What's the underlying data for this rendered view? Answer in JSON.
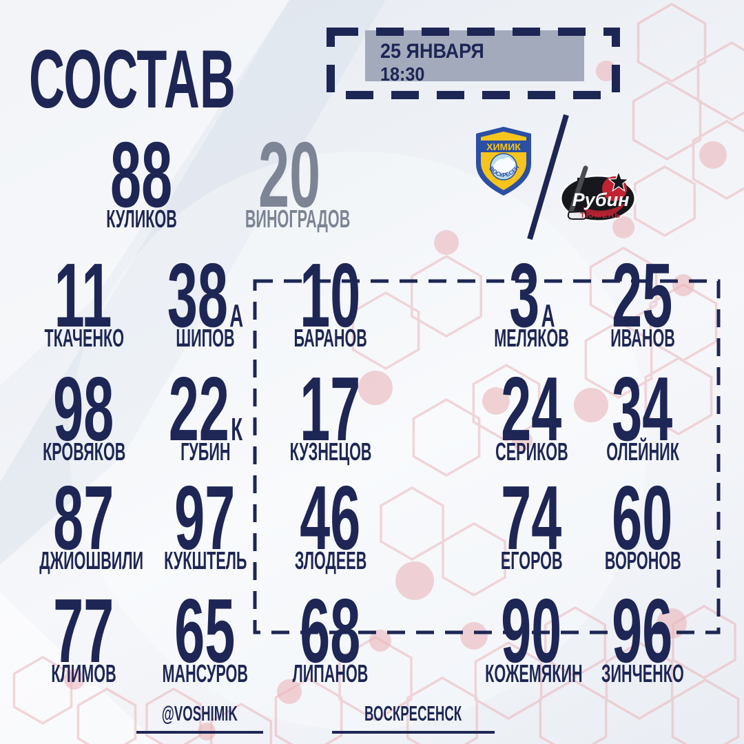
{
  "title": "СОСТАВ",
  "match": {
    "date": "25 ЯНВАРЯ",
    "time": "18:30"
  },
  "teams": {
    "home": {
      "name": "ХИМИК",
      "city": "ВОСКРЕСЕНСК"
    },
    "away": {
      "name": "Рубин",
      "city": "ТЮМЕНЬ"
    }
  },
  "goalies": [
    {
      "number": "88",
      "name": "КУЛИКОВ"
    },
    {
      "number": "20",
      "name": "ВИНОГРАДОВ"
    }
  ],
  "players": [
    {
      "number": "11",
      "letter": "",
      "name": "ТКАЧЕНКО"
    },
    {
      "number": "38",
      "letter": "А",
      "name": "ШИПОВ"
    },
    {
      "number": "10",
      "letter": "",
      "name": "БАРАНОВ"
    },
    {
      "number": "3",
      "letter": "А",
      "name": "МЕЛЯКОВ"
    },
    {
      "number": "25",
      "letter": "",
      "name": "ИВАНОВ"
    },
    {
      "number": "98",
      "letter": "",
      "name": "КРОВЯКОВ"
    },
    {
      "number": "22",
      "letter": "К",
      "name": "ГУБИН"
    },
    {
      "number": "17",
      "letter": "",
      "name": "КУЗНЕЦОВ"
    },
    {
      "number": "24",
      "letter": "",
      "name": "СЕРИКОВ"
    },
    {
      "number": "34",
      "letter": "",
      "name": "ОЛЕЙНИК"
    },
    {
      "number": "87",
      "letter": "",
      "name": "ДЖИОШВИЛИ"
    },
    {
      "number": "97",
      "letter": "",
      "name": "КУКШТЕЛЬ"
    },
    {
      "number": "46",
      "letter": "",
      "name": "ЗЛОДЕЕВ"
    },
    {
      "number": "74",
      "letter": "",
      "name": "ЕГОРОВ"
    },
    {
      "number": "60",
      "letter": "",
      "name": "ВОРОНОВ"
    },
    {
      "number": "77",
      "letter": "",
      "name": "КЛИМОВ"
    },
    {
      "number": "65",
      "letter": "",
      "name": "МАНСУРОВ"
    },
    {
      "number": "68",
      "letter": "",
      "name": "ЛИПАНОВ"
    },
    {
      "number": "90",
      "letter": "",
      "name": "КОЖЕМЯКИН"
    },
    {
      "number": "96",
      "letter": "",
      "name": "ЗИНЧЕНКО"
    }
  ],
  "footer": {
    "handle": "@VOSHIMIK",
    "city": "ВОСКРЕСЕНСК"
  },
  "colors": {
    "navy": "#1d2654",
    "muted": "#7d8494",
    "date_fill": "#9fa5b8",
    "pink_line": "#e8a9ae",
    "pink_fill": "#eab6bb",
    "himik_blue": "#2b4fa2",
    "himik_yellow": "#f6c41c",
    "himik_light": "#b9dcee",
    "rubin_black": "#17181d",
    "rubin_red": "#c22333"
  }
}
